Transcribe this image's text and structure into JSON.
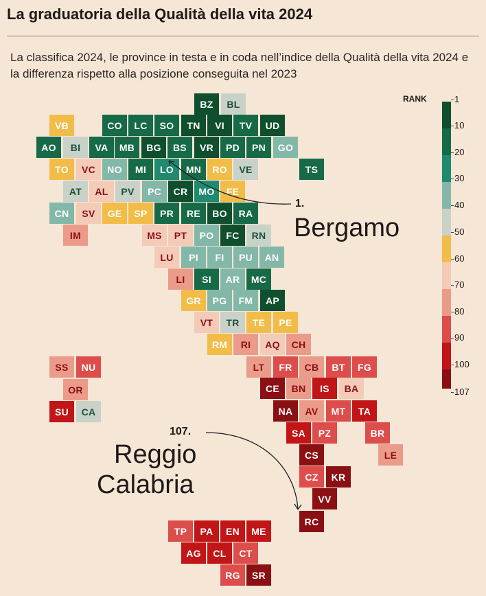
{
  "title": "La graduatoria della Qualità della vita 2024",
  "subtitle": "La classifica 2024, le province in testa e in coda nell’indice della Qualità della vita 2024 e la differenza rispetto alla posizione conseguita nel 2023",
  "legend": {
    "title": "RANK",
    "ticks": [
      "1",
      "10",
      "20",
      "30",
      "40",
      "50",
      "60",
      "70",
      "80",
      "90",
      "100",
      "107"
    ],
    "colors": [
      "#0f4f2e",
      "#176a48",
      "#1f8a70",
      "#83b8a9",
      "#c9d2c9",
      "#f2bc48",
      "#f4cbb7",
      "#eb9b8a",
      "#dc4d4c",
      "#c21518",
      "#8a1014"
    ]
  },
  "callout_top": {
    "rank": "1.",
    "name": "Bergamo"
  },
  "callout_bottom": {
    "rank": "107.",
    "name": "Reggio Calabria",
    "name_line1": "Reggio",
    "name_line2": "Calabria"
  },
  "palette": {
    "dg": "#0f4f2e",
    "g": "#176a48",
    "tl": "#1f8a70",
    "lt": "#83b8a9",
    "gr": "#c9d2c9",
    "ye": "#f2bc48",
    "pk": "#f4cbb7",
    "sa": "#eb9b8a",
    "rd": "#dc4d4c",
    "r2": "#c21518",
    "mr": "#8a1014"
  },
  "provinces": [
    {
      "code": "BZ",
      "c": "dg"
    },
    {
      "code": "BL",
      "c": "gr"
    },
    {
      "code": "VB",
      "c": "ye"
    },
    {
      "code": "CO",
      "c": "g"
    },
    {
      "code": "LC",
      "c": "g"
    },
    {
      "code": "SO",
      "c": "g"
    },
    {
      "code": "TN",
      "c": "dg"
    },
    {
      "code": "VI",
      "c": "dg"
    },
    {
      "code": "TV",
      "c": "g"
    },
    {
      "code": "UD",
      "c": "dg"
    },
    {
      "code": "AO",
      "c": "g"
    },
    {
      "code": "BI",
      "c": "gr"
    },
    {
      "code": "VA",
      "c": "g"
    },
    {
      "code": "MB",
      "c": "g"
    },
    {
      "code": "BG",
      "c": "dg"
    },
    {
      "code": "BS",
      "c": "g"
    },
    {
      "code": "VR",
      "c": "dg"
    },
    {
      "code": "PD",
      "c": "g"
    },
    {
      "code": "PN",
      "c": "g"
    },
    {
      "code": "GO",
      "c": "lt"
    },
    {
      "code": "TO",
      "c": "ye"
    },
    {
      "code": "VC",
      "c": "pk"
    },
    {
      "code": "NO",
      "c": "lt"
    },
    {
      "code": "MI",
      "c": "g"
    },
    {
      "code": "LO",
      "c": "tl"
    },
    {
      "code": "MN",
      "c": "g"
    },
    {
      "code": "RO",
      "c": "ye"
    },
    {
      "code": "VE",
      "c": "gr"
    },
    {
      "code": "TS",
      "c": "g"
    },
    {
      "code": "AT",
      "c": "gr"
    },
    {
      "code": "AL",
      "c": "pk"
    },
    {
      "code": "PV",
      "c": "gr"
    },
    {
      "code": "PC",
      "c": "lt"
    },
    {
      "code": "CR",
      "c": "dg"
    },
    {
      "code": "MO",
      "c": "tl"
    },
    {
      "code": "FE",
      "c": "ye"
    },
    {
      "code": "CN",
      "c": "lt"
    },
    {
      "code": "SV",
      "c": "pk"
    },
    {
      "code": "GE",
      "c": "ye"
    },
    {
      "code": "SP",
      "c": "ye"
    },
    {
      "code": "PR",
      "c": "g"
    },
    {
      "code": "RE",
      "c": "g"
    },
    {
      "code": "BO",
      "c": "dg"
    },
    {
      "code": "RA",
      "c": "g"
    },
    {
      "code": "IM",
      "c": "sa"
    },
    {
      "code": "MS",
      "c": "pk"
    },
    {
      "code": "PT",
      "c": "pk"
    },
    {
      "code": "PO",
      "c": "lt"
    },
    {
      "code": "FC",
      "c": "dg"
    },
    {
      "code": "RN",
      "c": "gr"
    },
    {
      "code": "LU",
      "c": "pk"
    },
    {
      "code": "PI",
      "c": "lt"
    },
    {
      "code": "FI",
      "c": "lt"
    },
    {
      "code": "PU",
      "c": "lt"
    },
    {
      "code": "AN",
      "c": "lt"
    },
    {
      "code": "LI",
      "c": "sa"
    },
    {
      "code": "SI",
      "c": "g"
    },
    {
      "code": "AR",
      "c": "lt"
    },
    {
      "code": "MC",
      "c": "g"
    },
    {
      "code": "GR",
      "c": "ye"
    },
    {
      "code": "PG",
      "c": "lt"
    },
    {
      "code": "FM",
      "c": "lt"
    },
    {
      "code": "AP",
      "c": "dg"
    },
    {
      "code": "VT",
      "c": "pk"
    },
    {
      "code": "TR",
      "c": "gr"
    },
    {
      "code": "TE",
      "c": "ye"
    },
    {
      "code": "PE",
      "c": "ye"
    },
    {
      "code": "RM",
      "c": "ye"
    },
    {
      "code": "RI",
      "c": "sa"
    },
    {
      "code": "AQ",
      "c": "pk"
    },
    {
      "code": "CH",
      "c": "sa"
    },
    {
      "code": "SS",
      "c": "sa"
    },
    {
      "code": "NU",
      "c": "rd"
    },
    {
      "code": "LT",
      "c": "sa"
    },
    {
      "code": "FR",
      "c": "rd"
    },
    {
      "code": "CB",
      "c": "sa"
    },
    {
      "code": "BT",
      "c": "rd"
    },
    {
      "code": "FG",
      "c": "rd"
    },
    {
      "code": "CE",
      "c": "mr"
    },
    {
      "code": "BN",
      "c": "sa"
    },
    {
      "code": "IS",
      "c": "r2"
    },
    {
      "code": "BA",
      "c": "pk"
    },
    {
      "code": "OR",
      "c": "sa"
    },
    {
      "code": "NA",
      "c": "mr"
    },
    {
      "code": "AV",
      "c": "sa"
    },
    {
      "code": "MT",
      "c": "rd"
    },
    {
      "code": "TA",
      "c": "r2"
    },
    {
      "code": "SU",
      "c": "r2"
    },
    {
      "code": "CA",
      "c": "gr"
    },
    {
      "code": "SA",
      "c": "r2"
    },
    {
      "code": "PZ",
      "c": "rd"
    },
    {
      "code": "BR",
      "c": "rd"
    },
    {
      "code": "CS",
      "c": "mr"
    },
    {
      "code": "LE",
      "c": "sa"
    },
    {
      "code": "CZ",
      "c": "rd"
    },
    {
      "code": "KR",
      "c": "mr"
    },
    {
      "code": "VV",
      "c": "mr"
    },
    {
      "code": "RC",
      "c": "mr"
    },
    {
      "code": "TP",
      "c": "rd"
    },
    {
      "code": "PA",
      "c": "r2"
    },
    {
      "code": "EN",
      "c": "r2"
    },
    {
      "code": "ME",
      "c": "r2"
    },
    {
      "code": "AG",
      "c": "r2"
    },
    {
      "code": "CL",
      "c": "r2"
    },
    {
      "code": "CT",
      "c": "rd"
    },
    {
      "code": "RG",
      "c": "rd"
    },
    {
      "code": "SR",
      "c": "mr"
    }
  ]
}
